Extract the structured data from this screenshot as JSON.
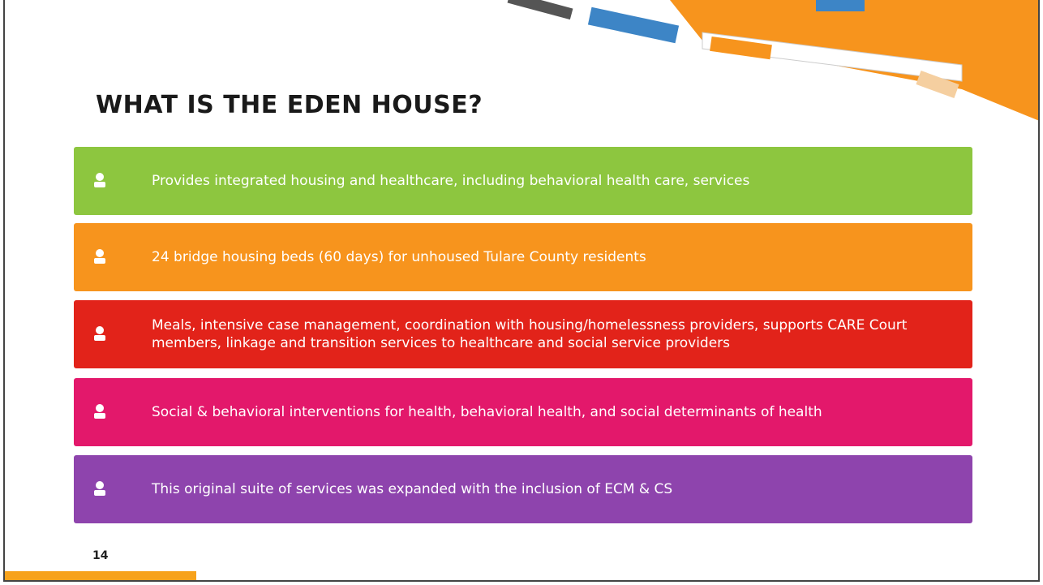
{
  "slide": {
    "title": "WHAT IS THE EDEN HOUSE?",
    "items": [
      {
        "text": "Provides integrated housing and healthcare, including behavioral health care, services",
        "color": "#8dc63f"
      },
      {
        "text": "24 bridge housing beds (60 days) for unhoused Tulare County residents",
        "color": "#f7941d"
      },
      {
        "text": "Meals, intensive case management, coordination with housing/homelessness providers, supports CARE Court members, linkage and transition services to healthcare and social service providers",
        "color": "#e2231a"
      },
      {
        "text": "Social & behavioral interventions for health, behavioral health, and social determinants of health",
        "color": "#e3186b"
      },
      {
        "text": "This original suite of services was expanded with the inclusion of ECM & CS",
        "color": "#8e44ad"
      }
    ],
    "page_number": "14"
  }
}
